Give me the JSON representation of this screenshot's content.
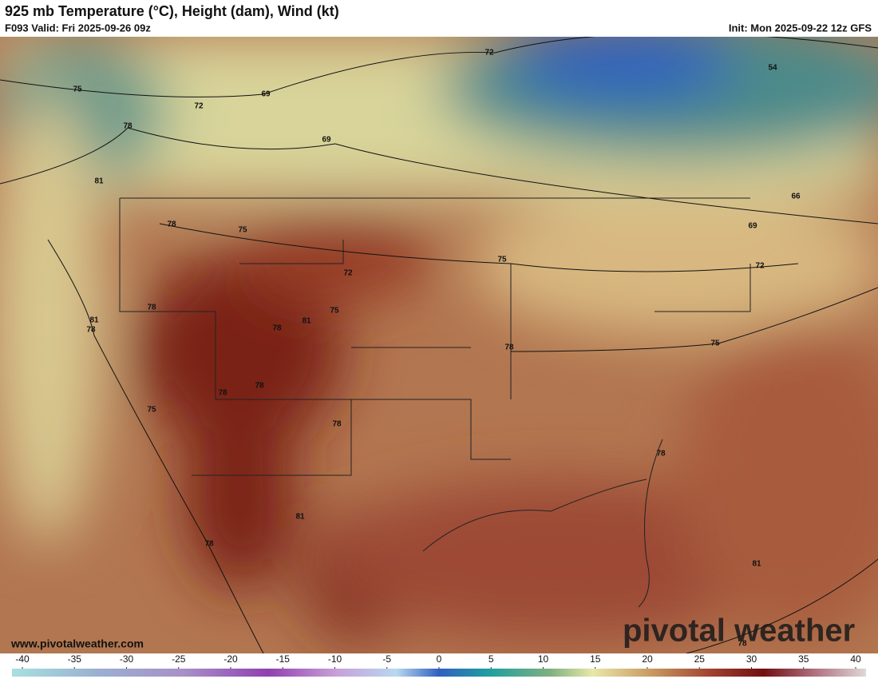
{
  "header": {
    "title": "925 mb Temperature (°C), Height (dam), Wind (kt)",
    "valid": "F093 Valid: Fri 2025-09-26 09z",
    "init": "Init: Mon 2025-09-22 12z GFS"
  },
  "contour_labels": [
    72,
    54,
    75,
    72,
    69,
    69,
    78,
    81,
    78,
    75,
    66,
    69,
    75,
    72,
    72,
    75,
    81,
    78,
    81,
    78,
    78,
    78,
    75,
    78,
    78,
    75,
    78,
    78,
    81,
    78,
    81,
    78
  ],
  "colorbar": {
    "ticks": [
      -40,
      -35,
      -30,
      -25,
      -20,
      -15,
      -10,
      -5,
      0,
      5,
      10,
      15,
      20,
      25,
      30,
      35,
      40
    ]
  },
  "watermark": "pivotal weather",
  "url": "www.pivotalweather.com"
}
